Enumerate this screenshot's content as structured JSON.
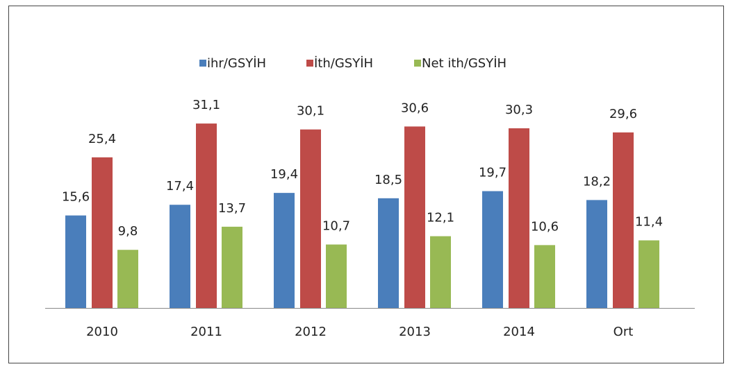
{
  "chart_data": {
    "type": "bar",
    "categories": [
      "2010",
      "2011",
      "2012",
      "2013",
      "2014",
      "Ort"
    ],
    "series": [
      {
        "name": "ihr/GSYİH",
        "color": "#4a7ebb",
        "values": [
          15.6,
          17.4,
          19.4,
          18.5,
          19.7,
          18.2
        ],
        "value_labels": [
          "15,6",
          "17,4",
          "19,4",
          "18,5",
          "19,7",
          "18,2"
        ]
      },
      {
        "name": "İth/GSYİH",
        "color": "#be4b48",
        "values": [
          25.4,
          31.1,
          30.1,
          30.6,
          30.3,
          29.6
        ],
        "value_labels": [
          "25,4",
          "31,1",
          "30,1",
          "30,6",
          "30,3",
          "29,6"
        ]
      },
      {
        "name": "Net ith/GSYİH",
        "color": "#98b954",
        "values": [
          9.8,
          13.7,
          10.7,
          12.1,
          10.6,
          11.4
        ],
        "value_labels": [
          "9,8",
          "13,7",
          "10,7",
          "12,1",
          "10,6",
          "11,4"
        ]
      }
    ],
    "legend": "top"
  }
}
